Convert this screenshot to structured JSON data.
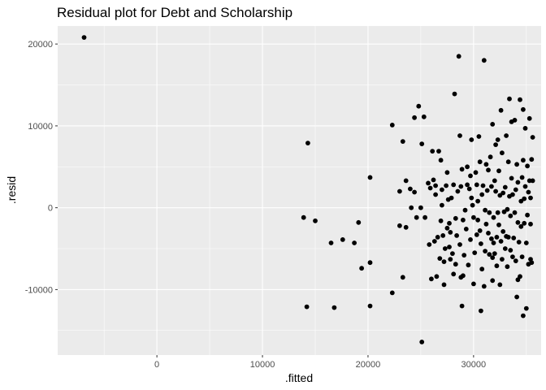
{
  "chart_data": {
    "type": "scatter",
    "title": "Residual plot for Debt and Scholarship",
    "xlabel": ".fitted",
    "ylabel": ".resid",
    "xlim": [
      -9400,
      36400
    ],
    "ylim": [
      -18000,
      22200
    ],
    "x_ticks": [
      0,
      10000,
      20000,
      30000
    ],
    "x_tick_labels": [
      "0",
      "10000",
      "20000",
      "30000"
    ],
    "y_ticks": [
      -10000,
      0,
      10000,
      20000
    ],
    "y_tick_labels": [
      "-10000",
      "0",
      "10000",
      "20000"
    ],
    "grid": true,
    "panel_color": "#ebebeb",
    "point_color": "#000000",
    "points": [
      [
        -6900,
        20800
      ],
      [
        13900,
        -1200
      ],
      [
        14300,
        7900
      ],
      [
        14200,
        -12100
      ],
      [
        15000,
        -1600
      ],
      [
        16500,
        -4300
      ],
      [
        16800,
        -12200
      ],
      [
        17600,
        -3900
      ],
      [
        18700,
        -4300
      ],
      [
        19100,
        -1800
      ],
      [
        19400,
        -7400
      ],
      [
        20200,
        3700
      ],
      [
        20200,
        -6700
      ],
      [
        20200,
        -12000
      ],
      [
        22300,
        10100
      ],
      [
        22300,
        -10400
      ],
      [
        23000,
        -2200
      ],
      [
        23000,
        2000
      ],
      [
        23300,
        8100
      ],
      [
        23300,
        -8500
      ],
      [
        23600,
        -2400
      ],
      [
        23600,
        3300
      ],
      [
        24000,
        2300
      ],
      [
        24100,
        0
      ],
      [
        24400,
        1900
      ],
      [
        24400,
        11000
      ],
      [
        24600,
        -1200
      ],
      [
        24800,
        12400
      ],
      [
        25000,
        0
      ],
      [
        25100,
        7800
      ],
      [
        25300,
        11100
      ],
      [
        25100,
        -16400
      ],
      [
        25400,
        -1200
      ],
      [
        25700,
        3000
      ],
      [
        25800,
        -4500
      ],
      [
        25900,
        2400
      ],
      [
        26000,
        -8700
      ],
      [
        26100,
        6900
      ],
      [
        26200,
        3400
      ],
      [
        26300,
        -4100
      ],
      [
        26400,
        2700
      ],
      [
        26500,
        -8400
      ],
      [
        26600,
        -3600
      ],
      [
        26700,
        6900
      ],
      [
        26800,
        -6200
      ],
      [
        26900,
        -1600
      ],
      [
        26900,
        5800
      ],
      [
        27000,
        2200
      ],
      [
        27000,
        300
      ],
      [
        27100,
        -3400
      ],
      [
        27200,
        -9400
      ],
      [
        27200,
        -6600
      ],
      [
        27300,
        -5000
      ],
      [
        27400,
        2700
      ],
      [
        27500,
        4300
      ],
      [
        27600,
        1000
      ],
      [
        27700,
        -1900
      ],
      [
        27700,
        -4800
      ],
      [
        27800,
        -6300
      ],
      [
        27800,
        -3000
      ],
      [
        27900,
        1200
      ],
      [
        28000,
        -5600
      ],
      [
        28100,
        2800
      ],
      [
        28100,
        -8100
      ],
      [
        28200,
        13900
      ],
      [
        28300,
        -1300
      ],
      [
        28300,
        -6900
      ],
      [
        28400,
        -3400
      ],
      [
        28500,
        2000
      ],
      [
        28600,
        18500
      ],
      [
        28700,
        8800
      ],
      [
        28700,
        -4500
      ],
      [
        28800,
        -8500
      ],
      [
        28800,
        2600
      ],
      [
        28900,
        -12000
      ],
      [
        28900,
        4700
      ],
      [
        29000,
        -8300
      ],
      [
        29000,
        -1500
      ],
      [
        29100,
        -5800
      ],
      [
        29200,
        -300
      ],
      [
        29300,
        -2600
      ],
      [
        29400,
        2800
      ],
      [
        29400,
        5000
      ],
      [
        29500,
        -7000
      ],
      [
        29600,
        2300
      ],
      [
        29700,
        -3900
      ],
      [
        29800,
        1200
      ],
      [
        29800,
        8300
      ],
      [
        29900,
        300
      ],
      [
        30000,
        -9300
      ],
      [
        30000,
        -1200
      ],
      [
        30100,
        -5500
      ],
      [
        30200,
        4300
      ],
      [
        30300,
        -3300
      ],
      [
        30300,
        2800
      ],
      [
        30400,
        800
      ],
      [
        30400,
        -1500
      ],
      [
        30500,
        8700
      ],
      [
        30600,
        -2800
      ],
      [
        30600,
        5600
      ],
      [
        30700,
        -12600
      ],
      [
        30700,
        -4400
      ],
      [
        30800,
        1600
      ],
      [
        30800,
        -7500
      ],
      [
        30900,
        2700
      ],
      [
        31000,
        -9600
      ],
      [
        31000,
        18000
      ],
      [
        31100,
        -300
      ],
      [
        31100,
        -5300
      ],
      [
        31200,
        5300
      ],
      [
        31200,
        -2000
      ],
      [
        31300,
        2100
      ],
      [
        31400,
        -3100
      ],
      [
        31400,
        4600
      ],
      [
        31500,
        -600
      ],
      [
        31500,
        -5700
      ],
      [
        31600,
        6200
      ],
      [
        31700,
        2600
      ],
      [
        31700,
        -3800
      ],
      [
        31800,
        -8900
      ],
      [
        31800,
        10200
      ],
      [
        31900,
        -4300
      ],
      [
        31900,
        -1200
      ],
      [
        32000,
        -5600
      ],
      [
        32000,
        3300
      ],
      [
        32100,
        7700
      ],
      [
        32100,
        2000
      ],
      [
        32200,
        -7100
      ],
      [
        32200,
        -3600
      ],
      [
        32300,
        8300
      ],
      [
        32300,
        -600
      ],
      [
        32400,
        4500
      ],
      [
        32400,
        -2100
      ],
      [
        32500,
        -9400
      ],
      [
        32500,
        1500
      ],
      [
        32600,
        11900
      ],
      [
        32600,
        -4100
      ],
      [
        32700,
        6700
      ],
      [
        32700,
        -6300
      ],
      [
        32800,
        1800
      ],
      [
        32800,
        -2900
      ],
      [
        32900,
        -500
      ],
      [
        33000,
        -5000
      ],
      [
        33000,
        2500
      ],
      [
        33100,
        8800
      ],
      [
        33200,
        -200
      ],
      [
        33200,
        -7200
      ],
      [
        33300,
        5600
      ],
      [
        33300,
        -3600
      ],
      [
        33400,
        13300
      ],
      [
        33400,
        1400
      ],
      [
        33500,
        -5200
      ],
      [
        33500,
        -1000
      ],
      [
        33600,
        3600
      ],
      [
        33600,
        10500
      ],
      [
        33700,
        -6000
      ],
      [
        33700,
        1600
      ],
      [
        33800,
        -3700
      ],
      [
        33900,
        10700
      ],
      [
        33900,
        -600
      ],
      [
        34000,
        -6500
      ],
      [
        34000,
        2200
      ],
      [
        34100,
        -10900
      ],
      [
        34100,
        5300
      ],
      [
        34200,
        -1800
      ],
      [
        34200,
        3100
      ],
      [
        34300,
        -4200
      ],
      [
        34400,
        13200
      ],
      [
        34400,
        -8400
      ],
      [
        34500,
        800
      ],
      [
        34500,
        -2300
      ],
      [
        34600,
        3700
      ],
      [
        34600,
        -6000
      ],
      [
        34700,
        12000
      ],
      [
        34700,
        -13200
      ],
      [
        34700,
        5800
      ],
      [
        34800,
        1100
      ],
      [
        34800,
        -1900
      ],
      [
        34900,
        9700
      ],
      [
        34900,
        2600
      ],
      [
        35000,
        -4300
      ],
      [
        35000,
        -12300
      ],
      [
        35100,
        5100
      ],
      [
        35100,
        -900
      ],
      [
        35200,
        1900
      ],
      [
        35200,
        -6900
      ],
      [
        35300,
        10900
      ],
      [
        35300,
        3300
      ],
      [
        35400,
        -6300
      ],
      [
        35400,
        -2000
      ],
      [
        35500,
        5900
      ],
      [
        35500,
        -6700
      ],
      [
        35600,
        3300
      ],
      [
        35600,
        8600
      ],
      [
        35400,
        1200
      ],
      [
        34200,
        -8800
      ],
      [
        33100,
        -3500
      ],
      [
        31800,
        -6100
      ],
      [
        29700,
        3900
      ],
      [
        27500,
        -2500
      ],
      [
        26400,
        1600
      ]
    ]
  }
}
